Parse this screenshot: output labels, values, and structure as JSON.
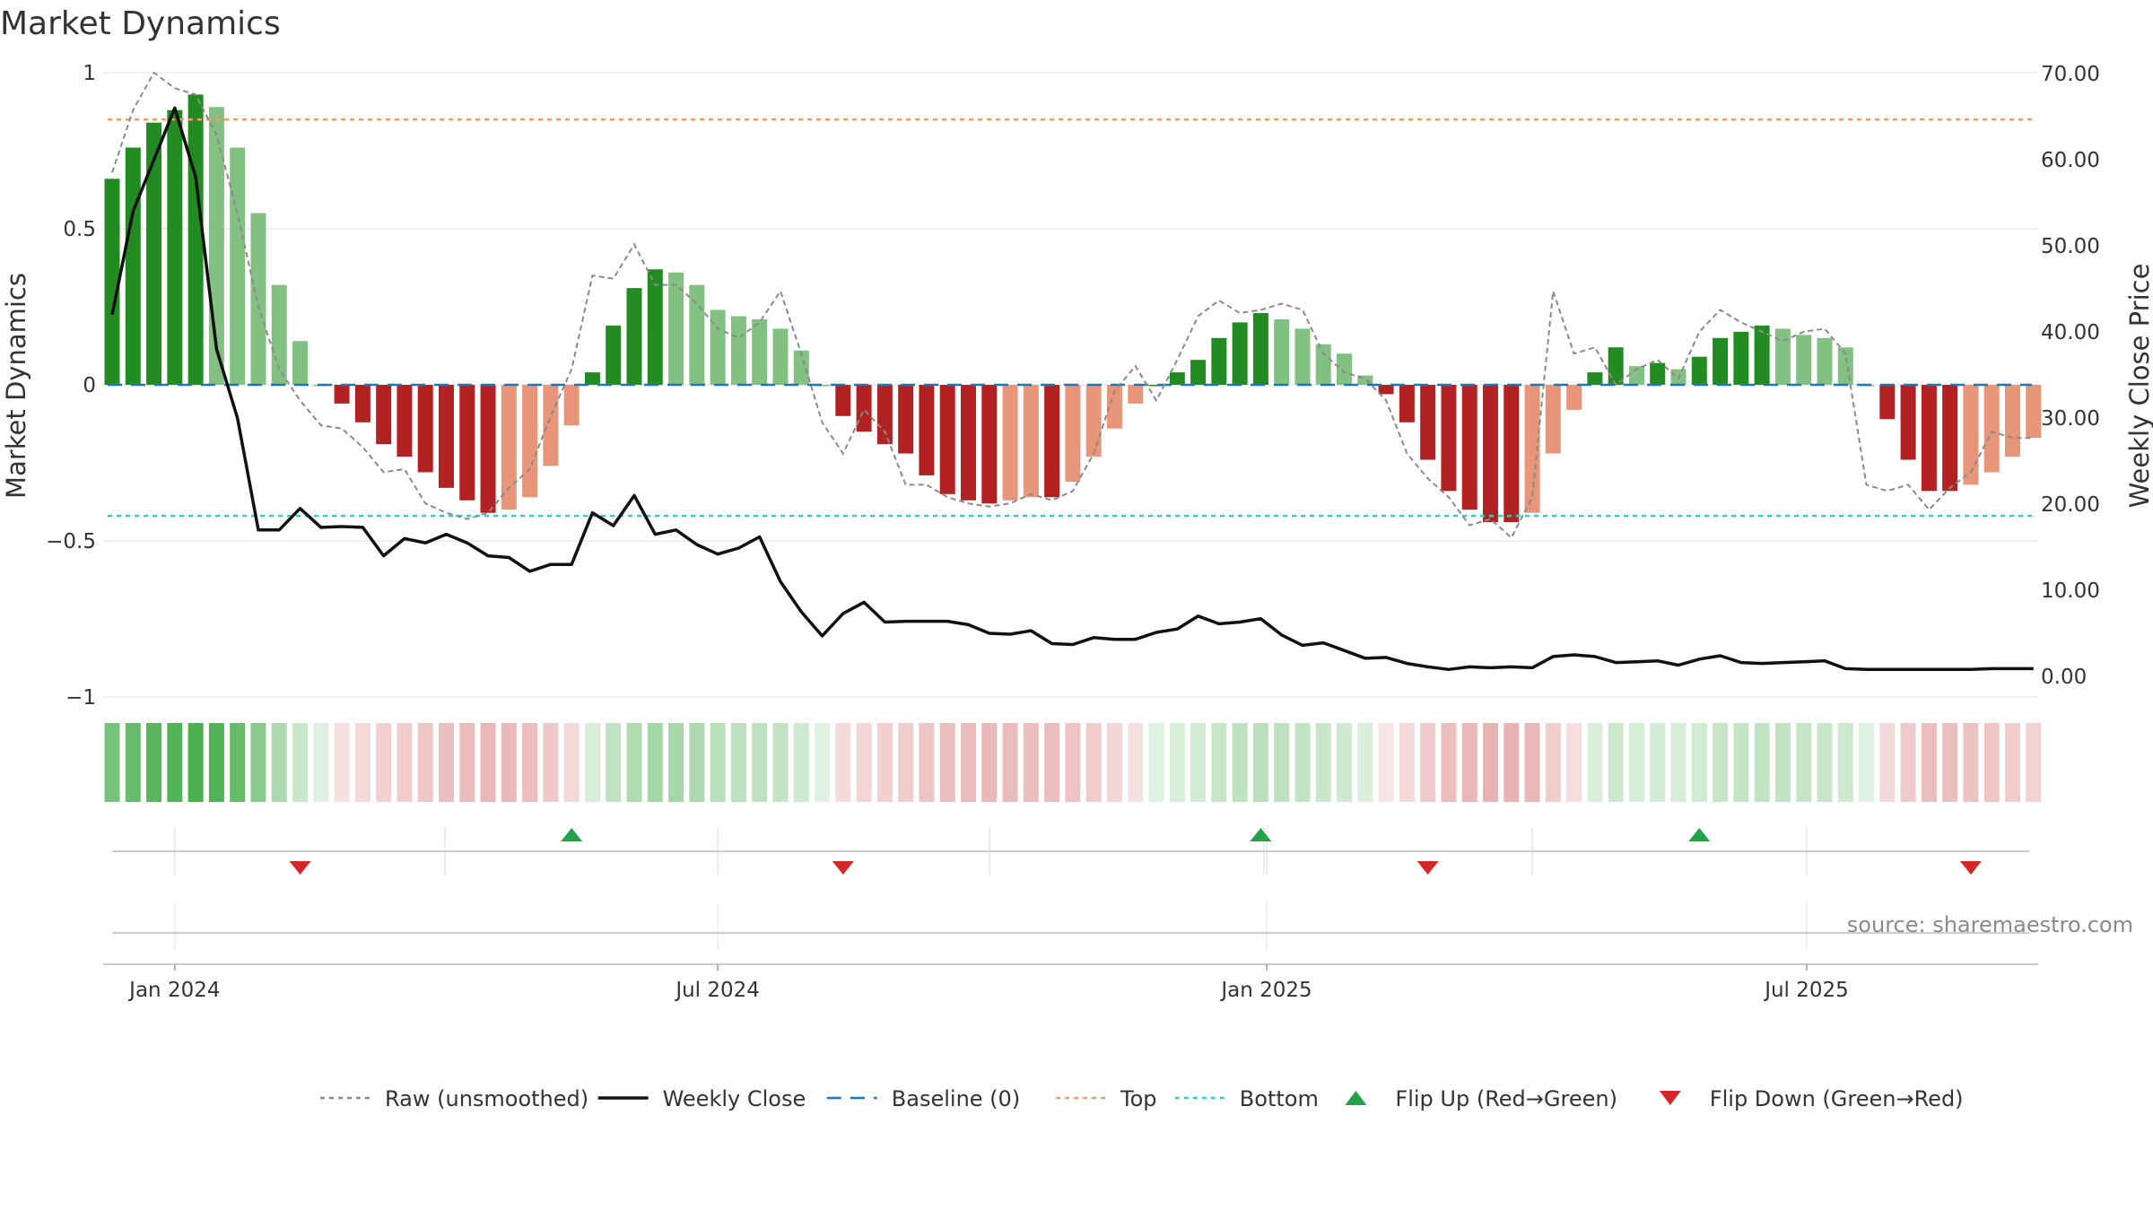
{
  "chart_data": {
    "type": "bar",
    "title": "Market Dynamics",
    "ylabel_left": "Market Dynamics",
    "ylabel_right": "Weekly Close Price",
    "ylim_left": [
      -1,
      1
    ],
    "ylim_right": [
      0,
      70
    ],
    "yticks_left": [
      "1",
      "0.5",
      "0",
      "−0.5",
      "−1"
    ],
    "yticks_right": [
      "70.00",
      "60.00",
      "50.00",
      "40.00",
      "30.00",
      "20.00",
      "10.00",
      "0.00"
    ],
    "x_start": "2023-12-11",
    "x_step_days": 7,
    "x_ticks": [
      {
        "label": "Jan 2024",
        "date": "2024-01-01"
      },
      {
        "label": "Jul 2024",
        "date": "2024-07-01"
      },
      {
        "label": "Jan 2025",
        "date": "2025-01-01"
      },
      {
        "label": "Jul 2025",
        "date": "2025-07-01"
      }
    ],
    "top_level": 0.85,
    "bottom_level": -0.42,
    "dynamics": [
      0.66,
      0.76,
      0.84,
      0.88,
      0.93,
      0.89,
      0.76,
      0.55,
      0.32,
      0.14,
      0.0,
      -0.06,
      -0.12,
      -0.19,
      -0.23,
      -0.28,
      -0.33,
      -0.37,
      -0.41,
      -0.4,
      -0.36,
      -0.26,
      -0.13,
      0.04,
      0.19,
      0.31,
      0.37,
      0.36,
      0.32,
      0.24,
      0.22,
      0.21,
      0.18,
      0.11,
      0.0,
      -0.1,
      -0.15,
      -0.19,
      -0.22,
      -0.29,
      -0.35,
      -0.37,
      -0.38,
      -0.37,
      -0.36,
      -0.36,
      -0.31,
      -0.23,
      -0.14,
      -0.06,
      0.0,
      0.04,
      0.08,
      0.15,
      0.2,
      0.23,
      0.21,
      0.18,
      0.13,
      0.1,
      0.03,
      -0.03,
      -0.12,
      -0.24,
      -0.34,
      -0.4,
      -0.44,
      -0.44,
      -0.41,
      -0.22,
      -0.08,
      0.04,
      0.12,
      0.06,
      0.07,
      0.05,
      0.09,
      0.15,
      0.17,
      0.19,
      0.18,
      0.16,
      0.15,
      0.12,
      0.0,
      -0.11,
      -0.24,
      -0.34,
      -0.34,
      -0.32,
      -0.28,
      -0.23,
      -0.17
    ],
    "raw": [
      0.68,
      0.88,
      1.0,
      0.95,
      0.93,
      0.8,
      0.55,
      0.25,
      0.05,
      -0.05,
      -0.13,
      -0.14,
      -0.2,
      -0.28,
      -0.27,
      -0.38,
      -0.41,
      -0.43,
      -0.41,
      -0.33,
      -0.27,
      -0.1,
      0.05,
      0.35,
      0.34,
      0.45,
      0.32,
      0.32,
      0.26,
      0.18,
      0.15,
      0.2,
      0.3,
      0.1,
      -0.12,
      -0.22,
      -0.08,
      -0.15,
      -0.32,
      -0.32,
      -0.36,
      -0.38,
      -0.39,
      -0.38,
      -0.35,
      -0.37,
      -0.34,
      -0.22,
      -0.02,
      0.06,
      -0.05,
      0.08,
      0.22,
      0.27,
      0.23,
      0.24,
      0.26,
      0.24,
      0.1,
      0.04,
      0.02,
      -0.05,
      -0.22,
      -0.3,
      -0.36,
      -0.45,
      -0.43,
      -0.49,
      -0.36,
      0.3,
      0.1,
      0.12,
      0.0,
      0.05,
      0.08,
      0.02,
      0.17,
      0.24,
      0.2,
      0.17,
      0.14,
      0.17,
      0.18,
      0.1,
      -0.32,
      -0.34,
      -0.32,
      -0.4,
      -0.33,
      -0.28,
      -0.15,
      -0.17,
      -0.17
    ],
    "weekly_close": [
      42.0,
      54.0,
      60.0,
      66.0,
      58.0,
      38.0,
      30.0,
      17.0,
      17.0,
      19.5,
      17.3,
      17.4,
      17.3,
      14.0,
      16.0,
      15.5,
      16.5,
      15.5,
      14.0,
      13.8,
      12.2,
      13.0,
      13.0,
      19.0,
      17.5,
      21.0,
      16.5,
      17.0,
      15.3,
      14.2,
      14.9,
      16.2,
      11.0,
      7.5,
      4.7,
      7.3,
      8.6,
      6.3,
      6.4,
      6.4,
      6.4,
      6.0,
      5.0,
      4.9,
      5.3,
      3.8,
      3.7,
      4.5,
      4.3,
      4.3,
      5.1,
      5.5,
      7.0,
      6.1,
      6.3,
      6.7,
      4.8,
      3.6,
      3.9,
      3.0,
      2.1,
      2.2,
      1.5,
      1.1,
      0.8,
      1.1,
      1.0,
      1.1,
      1.0,
      2.3,
      2.5,
      2.3,
      1.6,
      1.7,
      1.8,
      1.3,
      2.0,
      2.4,
      1.6,
      1.5,
      1.6,
      1.7,
      1.8,
      0.9,
      0.8,
      0.8,
      0.8,
      0.8,
      0.8,
      0.8,
      0.9,
      0.9,
      0.9
    ],
    "flip_up_dates": [
      "2024-05-13",
      "2024-12-30",
      "2025-05-26"
    ],
    "flip_down_dates": [
      "2024-02-12",
      "2024-08-12",
      "2025-02-24",
      "2025-08-25"
    ],
    "legend": [
      {
        "label": "Raw (unsmoothed)",
        "kind": "line-dotted",
        "color": "#8a8a8a"
      },
      {
        "label": "Weekly Close",
        "kind": "line-solid",
        "color": "#111111"
      },
      {
        "label": "Baseline (0)",
        "kind": "line-dashed",
        "color": "#1f77b4"
      },
      {
        "label": "Top",
        "kind": "line-dotted",
        "color": "#e8a06a"
      },
      {
        "label": "Bottom",
        "kind": "line-dotted",
        "color": "#3cc6d4"
      },
      {
        "label": "Flip Up (Red→Green)",
        "kind": "marker-up",
        "color": "#22a34a"
      },
      {
        "label": "Flip Down (Green→Red)",
        "kind": "marker-down",
        "color": "#d62728"
      }
    ],
    "colors": {
      "strong_green": "#228b22",
      "light_green": "#82c182",
      "strong_red": "#b22222",
      "light_red": "#e8967a",
      "raw": "#8a8a8a",
      "close": "#111111",
      "baseline": "#1f77b4",
      "top": "#e8a06a",
      "bottom": "#3cc6d4",
      "flip_up": "#22a34a",
      "flip_down": "#d62728"
    }
  },
  "source": "source: sharemaestro.com"
}
